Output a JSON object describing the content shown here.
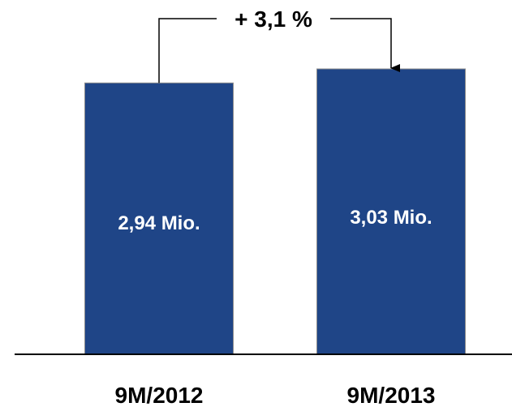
{
  "chart_data": {
    "type": "bar",
    "categories": [
      "9M/2012",
      "9M/2013"
    ],
    "values": [
      2.94,
      3.03
    ],
    "data_labels": [
      "2,94 Mio.",
      "3,03 Mio."
    ],
    "unit": "Mio.",
    "ylim": [
      0,
      3.03
    ],
    "grid": false,
    "legend": "none",
    "title": "",
    "xlabel": "",
    "ylabel": "",
    "annotation": {
      "label": "+ 3,1 %",
      "from": "9M/2012",
      "to": "9M/2013"
    },
    "colors": {
      "bar": "#1F4587",
      "bar_edge": "#8C8C8C",
      "axis": "#000000",
      "connector": "#000000"
    }
  }
}
